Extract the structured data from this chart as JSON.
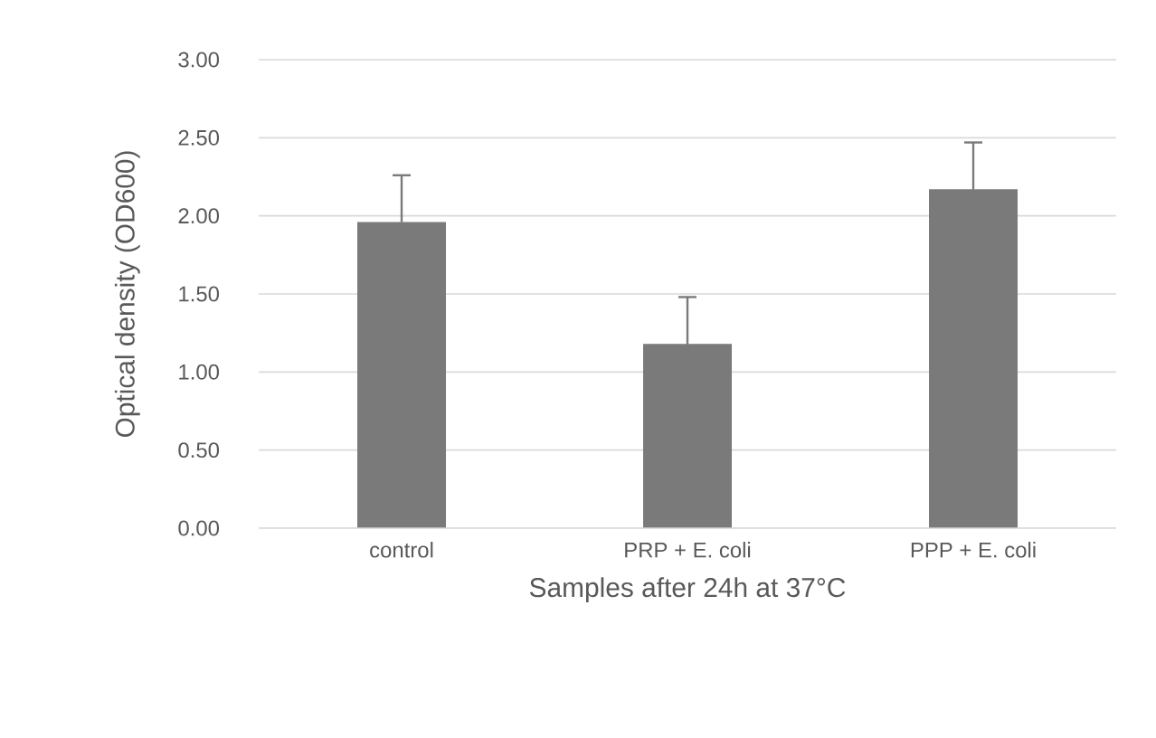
{
  "chart_data": {
    "type": "bar",
    "xlabel": "Samples after 24h at 37°C",
    "ylabel": "Optical density (OD600)",
    "categories": [
      "control",
      "PRP + E. coli",
      "PPP + E. coli"
    ],
    "values": [
      1.96,
      1.18,
      2.17
    ],
    "errors": [
      0.3,
      0.3,
      0.3
    ],
    "color": "#7a7a7a",
    "ylim": [
      0,
      3
    ],
    "yticks": [
      {
        "value": 0,
        "label": "0.00"
      },
      {
        "value": 0.5,
        "label": "0.50"
      },
      {
        "value": 1,
        "label": "1.00"
      },
      {
        "value": 1.5,
        "label": "1.50"
      },
      {
        "value": 2,
        "label": "2.00"
      },
      {
        "value": 2.5,
        "label": "2.50"
      },
      {
        "value": 3,
        "label": "3.00"
      }
    ],
    "grid": "y"
  }
}
